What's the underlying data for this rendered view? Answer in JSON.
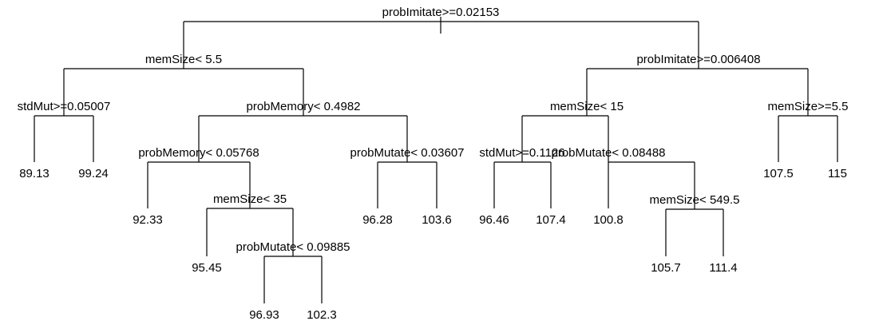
{
  "tree": {
    "line_color": "#000000",
    "background": "#ffffff",
    "root": {
      "id": "root",
      "split": "probImitate>=0.02153",
      "children": [
        {
          "id": "n1",
          "split": "memSize< 5.5",
          "children": [
            {
              "id": "n2",
              "split": "stdMut>=0.05007",
              "children": [
                {
                  "id": "l1",
                  "value": "89.13"
                },
                {
                  "id": "l2",
                  "value": "99.24"
                }
              ]
            },
            {
              "id": "n3",
              "split": "probMemory< 0.4982",
              "children": [
                {
                  "id": "n4",
                  "split": "probMemory< 0.05768",
                  "children": [
                    {
                      "id": "l3",
                      "value": "92.33"
                    },
                    {
                      "id": "n5",
                      "split": "memSize< 35",
                      "children": [
                        {
                          "id": "l4",
                          "value": "95.45"
                        },
                        {
                          "id": "n6",
                          "split": "probMutate< 0.09885",
                          "children": [
                            {
                              "id": "l5",
                              "value": "96.93"
                            },
                            {
                              "id": "l6",
                              "value": "102.3"
                            }
                          ]
                        }
                      ]
                    }
                  ]
                },
                {
                  "id": "n7",
                  "split": "probMutate< 0.03607",
                  "children": [
                    {
                      "id": "l7",
                      "value": "96.28"
                    },
                    {
                      "id": "l8",
                      "value": "103.6"
                    }
                  ]
                }
              ]
            }
          ]
        },
        {
          "id": "n8",
          "split": "probImitate>=0.006408",
          "children": [
            {
              "id": "n9",
              "split": "memSize< 15",
              "children": [
                {
                  "id": "n10",
                  "split": "stdMut>=0.1126",
                  "children": [
                    {
                      "id": "l9",
                      "value": "96.46"
                    },
                    {
                      "id": "l10",
                      "value": "107.4"
                    }
                  ]
                },
                {
                  "id": "n11",
                  "split": "probMutate< 0.08488",
                  "children": [
                    {
                      "id": "l11",
                      "value": "100.8"
                    },
                    {
                      "id": "n12",
                      "split": "memSize< 549.5",
                      "children": [
                        {
                          "id": "l12",
                          "value": "105.7"
                        },
                        {
                          "id": "l13",
                          "value": "111.4"
                        }
                      ]
                    }
                  ]
                }
              ]
            },
            {
              "id": "n13",
              "split": "memSize>=5.5",
              "children": [
                {
                  "id": "l14",
                  "value": "107.5"
                },
                {
                  "id": "l15",
                  "value": "115"
                }
              ]
            }
          ]
        }
      ]
    }
  }
}
